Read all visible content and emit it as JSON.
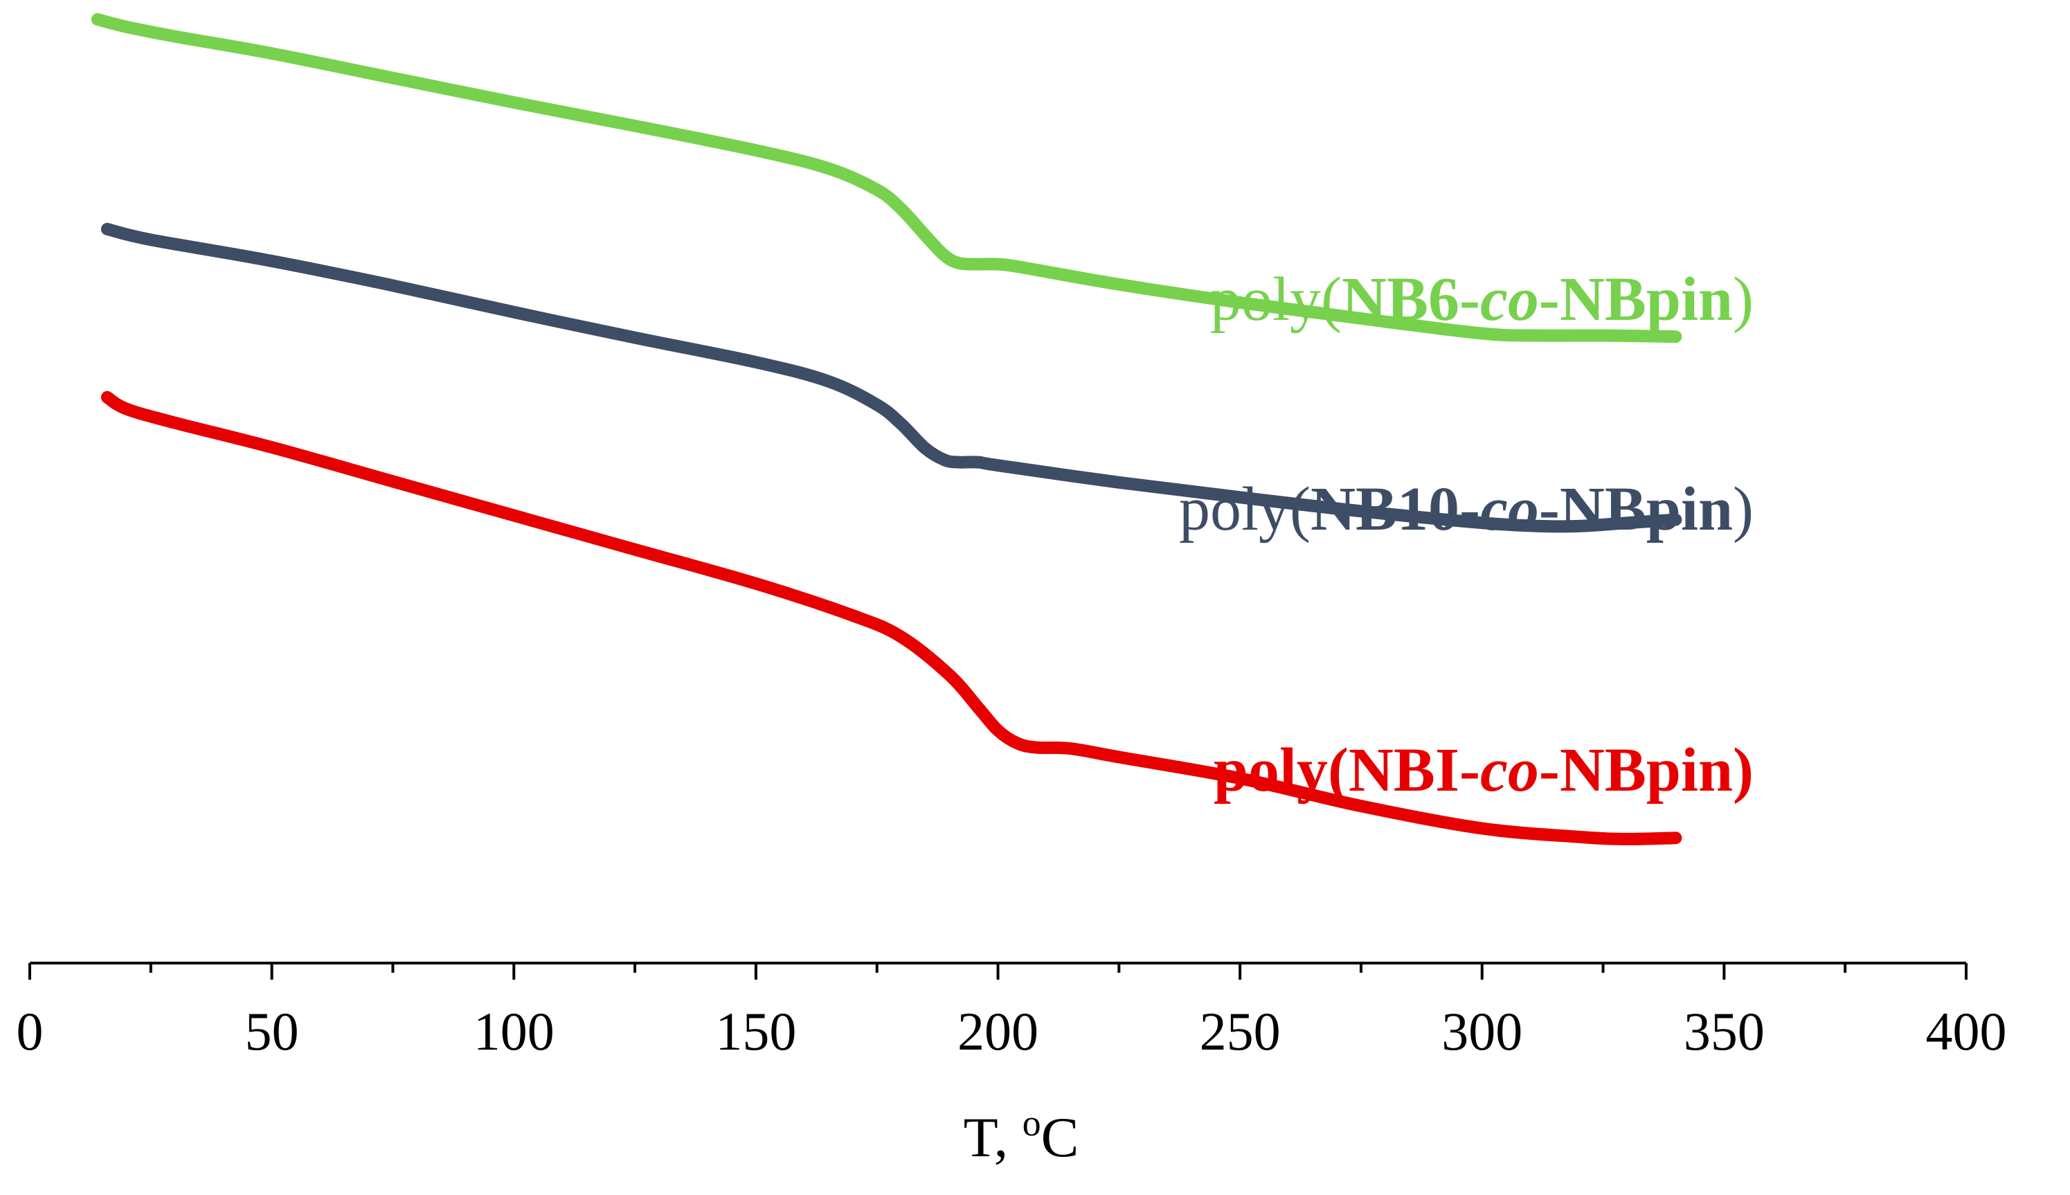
{
  "chart_data": {
    "type": "line",
    "title": "",
    "xlabel": {
      "main": "T, ",
      "sup": "o",
      "unit": "C"
    },
    "ylabel": "",
    "xlim": [
      0,
      400
    ],
    "x_major_ticks": [
      0,
      50,
      100,
      150,
      200,
      250,
      300,
      350,
      400
    ],
    "x_minor_ticks": [
      25,
      75,
      125,
      175,
      225,
      275,
      325,
      375
    ],
    "y_axis_shown": false,
    "grid": false,
    "series": [
      {
        "name": "poly(NB6-co-NBpin)",
        "color": "#77d14d",
        "label_parts": [
          {
            "text": "poly(",
            "bold": false,
            "italic": false
          },
          {
            "text": "NB6-",
            "bold": true,
            "italic": false
          },
          {
            "text": "co",
            "bold": true,
            "italic": true
          },
          {
            "text": "-NBpin",
            "bold": true,
            "italic": false
          },
          {
            "text": ")",
            "bold": false,
            "italic": false
          }
        ],
        "label_bold": false,
        "points": [
          [
            14,
            0.0
          ],
          [
            20,
            0.7
          ],
          [
            30,
            1.6
          ],
          [
            50,
            3.2
          ],
          [
            75,
            5.5
          ],
          [
            100,
            7.8
          ],
          [
            125,
            10.0
          ],
          [
            150,
            12.3
          ],
          [
            165,
            14.0
          ],
          [
            175,
            16.0
          ],
          [
            180,
            17.8
          ],
          [
            185,
            20.3
          ],
          [
            189,
            22.2
          ],
          [
            192,
            22.9
          ],
          [
            196,
            23.0
          ],
          [
            200,
            23.0
          ],
          [
            205,
            23.3
          ],
          [
            225,
            24.9
          ],
          [
            250,
            26.6
          ],
          [
            275,
            28.1
          ],
          [
            300,
            29.5
          ],
          [
            312,
            29.7
          ],
          [
            325,
            29.7
          ],
          [
            340,
            29.8
          ]
        ]
      },
      {
        "name": "poly(NB10-co-NBpin)",
        "color": "#3e4d66",
        "label_parts": [
          {
            "text": "poly(",
            "bold": false,
            "italic": false
          },
          {
            "text": "NB10-",
            "bold": true,
            "italic": false
          },
          {
            "text": "co",
            "bold": true,
            "italic": true
          },
          {
            "text": "-NBpin",
            "bold": true,
            "italic": false
          },
          {
            "text": ")",
            "bold": false,
            "italic": false
          }
        ],
        "label_bold": false,
        "points": [
          [
            16,
            19.7
          ],
          [
            25,
            20.7
          ],
          [
            50,
            22.7
          ],
          [
            75,
            25.0
          ],
          [
            100,
            27.5
          ],
          [
            125,
            29.9
          ],
          [
            150,
            32.2
          ],
          [
            165,
            34.0
          ],
          [
            175,
            36.2
          ],
          [
            180,
            38.0
          ],
          [
            185,
            40.3
          ],
          [
            189,
            41.4
          ],
          [
            192,
            41.6
          ],
          [
            196,
            41.6
          ],
          [
            200,
            41.9
          ],
          [
            225,
            43.5
          ],
          [
            250,
            44.9
          ],
          [
            275,
            46.2
          ],
          [
            300,
            47.3
          ],
          [
            312,
            47.6
          ],
          [
            320,
            47.6
          ],
          [
            330,
            47.3
          ],
          [
            340,
            47.0
          ]
        ]
      },
      {
        "name": "poly(NBI-co-NBpin)",
        "color": "#e60000",
        "label_parts": [
          {
            "text": "poly(",
            "bold": true,
            "italic": false
          },
          {
            "text": "NBI-",
            "bold": true,
            "italic": false
          },
          {
            "text": "co",
            "bold": true,
            "italic": true
          },
          {
            "text": "-NBpin",
            "bold": true,
            "italic": false
          },
          {
            "text": ")",
            "bold": true,
            "italic": false
          }
        ],
        "label_bold": true,
        "points": [
          [
            16,
            35.5
          ],
          [
            20,
            36.6
          ],
          [
            30,
            37.9
          ],
          [
            50,
            40.2
          ],
          [
            75,
            43.4
          ],
          [
            100,
            46.6
          ],
          [
            125,
            49.8
          ],
          [
            150,
            53.0
          ],
          [
            170,
            56.0
          ],
          [
            180,
            58.0
          ],
          [
            190,
            61.6
          ],
          [
            196,
            64.7
          ],
          [
            200,
            66.8
          ],
          [
            204,
            68.0
          ],
          [
            208,
            68.4
          ],
          [
            215,
            68.5
          ],
          [
            225,
            69.3
          ],
          [
            250,
            71.3
          ],
          [
            275,
            73.9
          ],
          [
            300,
            76.0
          ],
          [
            320,
            76.8
          ],
          [
            330,
            77.0
          ],
          [
            340,
            76.9
          ]
        ]
      }
    ],
    "legend_placement": "inline-right-of-curves"
  }
}
